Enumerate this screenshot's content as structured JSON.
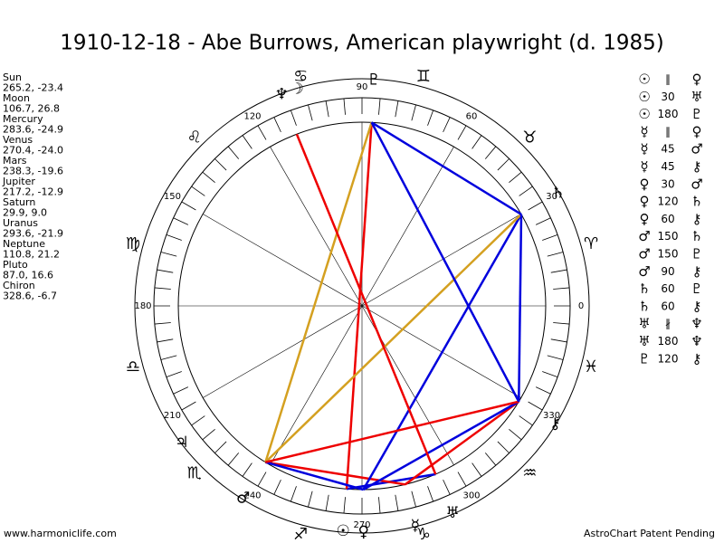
{
  "title": "1910-12-18 - Abe Burrows, American playwright (d. 1985)",
  "footer_left": "www.harmoniclife.com",
  "footer_right": "AstroChart Patent Pending",
  "planets": [
    {
      "name": "Sun",
      "glyph": "☉",
      "coords": "265.2, -23.4"
    },
    {
      "name": "Moon",
      "glyph": "☽",
      "coords": "106.7, 26.8"
    },
    {
      "name": "Mercury",
      "glyph": "☿",
      "coords": "283.6, -24.9"
    },
    {
      "name": "Venus",
      "glyph": "♀",
      "coords": "270.4, -24.0"
    },
    {
      "name": "Mars",
      "glyph": "♂",
      "coords": "238.3, -19.6"
    },
    {
      "name": "Jupiter",
      "glyph": "♃",
      "coords": "217.2, -12.9"
    },
    {
      "name": "Saturn",
      "glyph": "♄",
      "coords": "29.9, 9.0"
    },
    {
      "name": "Uranus",
      "glyph": "♅",
      "coords": "293.6, -21.9"
    },
    {
      "name": "Neptune",
      "glyph": "♆",
      "coords": "110.8, 21.2"
    },
    {
      "name": "Pluto",
      "glyph": "♇",
      "coords": "87.0, 16.6"
    },
    {
      "name": "Chiron",
      "glyph": "⚷",
      "coords": "328.6, -6.7"
    }
  ],
  "degree_labels": [
    0,
    30,
    60,
    90,
    120,
    150,
    180,
    210,
    240,
    270,
    300,
    330
  ],
  "signs": [
    "♈",
    "♉",
    "♊",
    "♋",
    "♌",
    "♍",
    "♎",
    "♏",
    "♐",
    "♑",
    "♒",
    "♓"
  ],
  "aspects": [
    {
      "from": "☉",
      "kind": "∥",
      "to": "♀"
    },
    {
      "from": "☉",
      "kind": "30",
      "to": "♅",
      "color": "#0000dd"
    },
    {
      "from": "☉",
      "kind": "180",
      "to": "♇",
      "color": "#ee0000"
    },
    {
      "from": "☿",
      "kind": "∥",
      "to": "♀"
    },
    {
      "from": "☿",
      "kind": "45",
      "to": "♂",
      "color": "#ee0000"
    },
    {
      "from": "☿",
      "kind": "45",
      "to": "⚷",
      "color": "#ee0000"
    },
    {
      "from": "♀",
      "kind": "30",
      "to": "♂",
      "color": "#0000dd"
    },
    {
      "from": "♀",
      "kind": "120",
      "to": "♄",
      "color": "#0000dd"
    },
    {
      "from": "♀",
      "kind": "60",
      "to": "⚷",
      "color": "#0000dd"
    },
    {
      "from": "♂",
      "kind": "150",
      "to": "♄",
      "color": "#d4a020"
    },
    {
      "from": "♂",
      "kind": "150",
      "to": "♇",
      "color": "#d4a020"
    },
    {
      "from": "♂",
      "kind": "90",
      "to": "⚷",
      "color": "#ee0000"
    },
    {
      "from": "♄",
      "kind": "60",
      "to": "♇",
      "color": "#0000dd"
    },
    {
      "from": "♄",
      "kind": "60",
      "to": "⚷",
      "color": "#0000dd"
    },
    {
      "from": "♅",
      "kind": "∦",
      "to": "♆"
    },
    {
      "from": "♅",
      "kind": "180",
      "to": "♆",
      "color": "#ee0000"
    },
    {
      "from": "♇",
      "kind": "120",
      "to": "⚷",
      "color": "#0000dd"
    }
  ]
}
